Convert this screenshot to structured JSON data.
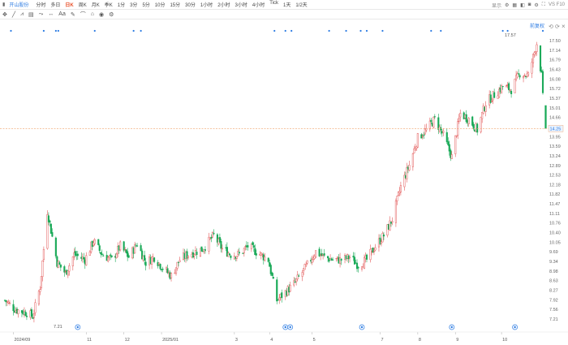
{
  "stock": {
    "name": "开山股份"
  },
  "periods": [
    "分时",
    "多日",
    "日K",
    "周K",
    "月K",
    "季K",
    "1分",
    "3分",
    "5分",
    "10分",
    "15分",
    "30分",
    "1小时",
    "2小时",
    "3小时",
    "4小时",
    "Tick",
    "1天",
    "1/2天"
  ],
  "active_period": "日K",
  "topbar_right": {
    "display_label": "显示",
    "vs_label": "VS F10"
  },
  "drawing_tools": [
    "crosshair-tool",
    "arrow-line-tool",
    "pattern-tool",
    "trend-tool",
    "fib-tool",
    "channel-tool",
    "text-tool",
    "brush-tool",
    "measure-tool",
    "marker-tool",
    "eye-tool",
    "settings-tool"
  ],
  "chart_panel": {
    "restore_label": "前复权",
    "high_label": "17.57",
    "low_label": "7.21",
    "current_price_label": "14.25"
  },
  "colors": {
    "up": "#e35b5b",
    "down": "#18a957",
    "accent": "#2a7ae2",
    "price_line": "#f0a26b"
  },
  "chart_data": {
    "type": "candlestick",
    "y_ticks": [
      "17.50",
      "17.14",
      "16.79",
      "16.43",
      "16.08",
      "15.72",
      "15.37",
      "15.01",
      "14.66",
      "14.25",
      "13.95",
      "13.59",
      "13.24",
      "12.89",
      "12.53",
      "12.18",
      "11.82",
      "11.47",
      "11.11",
      "10.76",
      "10.40",
      "10.05",
      "9.69",
      "9.34",
      "8.98",
      "8.63",
      "8.27",
      "7.92",
      "7.56",
      "7.21"
    ],
    "ylim": [
      7.21,
      17.5
    ],
    "x_ticks": [
      {
        "label": "2024/09",
        "date": "2024-09-02"
      },
      {
        "label": "11",
        "date": "2024-11-01"
      },
      {
        "label": "12",
        "date": "2024-12-02"
      },
      {
        "label": "2025/01",
        "date": "2025-01-02"
      },
      {
        "label": "3",
        "date": "2025-03-03"
      },
      {
        "label": "4",
        "date": "2025-04-01"
      },
      {
        "label": "5",
        "date": "2025-05-06"
      },
      {
        "label": "7",
        "date": "2025-07-01"
      },
      {
        "label": "8",
        "date": "2025-08-01"
      },
      {
        "label": "9",
        "date": "2025-09-01"
      },
      {
        "label": "10",
        "date": "2025-10-09"
      }
    ],
    "xlim": [
      "2024-08-26",
      "2025-11-14"
    ],
    "anchors": [
      [
        "2024-08-26",
        7.9
      ],
      [
        "2024-09-04",
        7.55
      ],
      [
        "2024-09-13",
        7.45
      ],
      [
        "2024-09-18",
        7.3
      ],
      [
        "2024-09-24",
        8.4
      ],
      [
        "2024-09-30",
        11.2
      ],
      [
        "2024-10-08",
        9.3
      ],
      [
        "2024-10-15",
        8.9
      ],
      [
        "2024-10-22",
        9.6
      ],
      [
        "2024-10-31",
        9.4
      ],
      [
        "2024-11-07",
        10.1
      ],
      [
        "2024-11-14",
        9.6
      ],
      [
        "2024-11-22",
        9.4
      ],
      [
        "2024-11-29",
        9.9
      ],
      [
        "2024-12-06",
        9.5
      ],
      [
        "2024-12-13",
        10.0
      ],
      [
        "2024-12-20",
        9.3
      ],
      [
        "2024-12-27",
        9.5
      ],
      [
        "2025-01-03",
        9.1
      ],
      [
        "2025-01-10",
        8.8
      ],
      [
        "2025-01-17",
        9.4
      ],
      [
        "2025-01-24",
        9.6
      ],
      [
        "2025-02-05",
        9.8
      ],
      [
        "2025-02-14",
        10.3
      ],
      [
        "2025-02-21",
        9.8
      ],
      [
        "2025-02-28",
        9.6
      ],
      [
        "2025-03-07",
        9.6
      ],
      [
        "2025-03-14",
        9.9
      ],
      [
        "2025-03-21",
        9.7
      ],
      [
        "2025-03-31",
        9.4
      ],
      [
        "2025-04-07",
        7.9
      ],
      [
        "2025-04-14",
        8.2
      ],
      [
        "2025-04-21",
        8.5
      ],
      [
        "2025-04-29",
        9.0
      ],
      [
        "2025-05-09",
        9.7
      ],
      [
        "2025-05-16",
        9.5
      ],
      [
        "2025-05-23",
        9.4
      ],
      [
        "2025-05-30",
        9.4
      ],
      [
        "2025-06-06",
        9.5
      ],
      [
        "2025-06-13",
        9.2
      ],
      [
        "2025-06-20",
        9.4
      ],
      [
        "2025-06-27",
        9.9
      ],
      [
        "2025-07-04",
        10.3
      ],
      [
        "2025-07-11",
        10.9
      ],
      [
        "2025-07-18",
        12.1
      ],
      [
        "2025-07-25",
        12.9
      ],
      [
        "2025-08-01",
        13.9
      ],
      [
        "2025-08-08",
        14.2
      ],
      [
        "2025-08-15",
        14.6
      ],
      [
        "2025-08-22",
        14.0
      ],
      [
        "2025-08-29",
        13.2
      ],
      [
        "2025-09-05",
        14.8
      ],
      [
        "2025-09-12",
        14.6
      ],
      [
        "2025-09-19",
        14.2
      ],
      [
        "2025-09-26",
        15.2
      ],
      [
        "2025-10-10",
        15.8
      ],
      [
        "2025-10-17",
        15.7
      ],
      [
        "2025-10-24",
        16.3
      ],
      [
        "2025-10-31",
        16.2
      ],
      [
        "2025-11-07",
        17.4
      ],
      [
        "2025-11-11",
        16.2
      ],
      [
        "2025-11-12",
        15.4
      ],
      [
        "2025-11-13",
        14.25
      ]
    ],
    "high": 17.57,
    "low": 7.21,
    "current_price": 14.25,
    "event_marker_dates": [
      "2024-10-25",
      "2025-04-14",
      "2025-04-18",
      "2025-06-16",
      "2025-08-29",
      "2025-10-20"
    ],
    "top_marker_dates": [
      "2024-08-31",
      "2024-09-27",
      "2024-10-07",
      "2024-10-09",
      "2024-11-08",
      "2024-12-10",
      "2024-12-16",
      "2025-04-05",
      "2025-04-14",
      "2025-04-19",
      "2025-05-20",
      "2025-06-03",
      "2025-06-15",
      "2025-06-20",
      "2025-07-03",
      "2025-08-12",
      "2025-08-20",
      "2025-10-10",
      "2025-10-14",
      "2025-11-12"
    ]
  }
}
